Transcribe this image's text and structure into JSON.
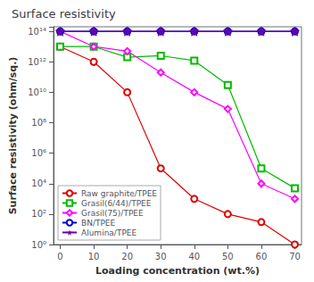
{
  "chart_data": {
    "type": "line",
    "title": "Surface resistivity",
    "xlabel": "Loading concentration (wt.%)",
    "ylabel": "Surface resistivity (ohm/sq.)",
    "x": [
      0,
      10,
      20,
      30,
      40,
      50,
      60,
      70
    ],
    "series": [
      {
        "name": "Raw graphite/TPEE",
        "color": "#dd0000",
        "marker": "circle",
        "values": [
          10000000000000.0,
          1000000000000.0,
          10000000000.0,
          100000.0,
          1000.0,
          100.0,
          30.0,
          1.0
        ]
      },
      {
        "name": "Grasil(6/44)/TPEE",
        "color": "#00bb00",
        "marker": "square",
        "values": [
          10000000000000.0,
          10000000000000.0,
          2000000000000.0,
          2500000000000.0,
          1200000000000.0,
          30000000000.0,
          100000.0,
          5000.0
        ]
      },
      {
        "name": "Grasil(75)/TPEE",
        "color": "#ff00ff",
        "marker": "diamond",
        "values": [
          100000000000000.0,
          10000000000000.0,
          5000000000000.0,
          200000000000.0,
          10000000000.0,
          800000000.0,
          10000.0,
          1000.0
        ]
      },
      {
        "name": "BN/TPEE",
        "color": "#0000cc",
        "marker": "circle",
        "values": [
          100000000000000.0,
          100000000000000.0,
          100000000000000.0,
          100000000000000.0,
          100000000000000.0,
          100000000000000.0,
          100000000000000.0,
          100000000000000.0
        ]
      },
      {
        "name": "Alumina/TPEE",
        "color": "#6600aa",
        "marker": "star",
        "values": [
          100000000000000.0,
          100000000000000.0,
          100000000000000.0,
          100000000000000.0,
          100000000000000.0,
          100000000000000.0,
          100000000000000.0,
          100000000000000.0
        ]
      }
    ],
    "xlim": [
      -2,
      72
    ],
    "xticks": [
      0,
      10,
      20,
      30,
      40,
      50,
      60,
      70
    ],
    "ylim": [
      1,
      200000000000000.0
    ],
    "yticks": [
      {
        "value": 1,
        "label": "10⁰"
      },
      {
        "value": 100.0,
        "label": "10²"
      },
      {
        "value": 10000.0,
        "label": "10⁴"
      },
      {
        "value": 1000000.0,
        "label": "10⁶"
      },
      {
        "value": 100000000.0,
        "label": "10⁸"
      },
      {
        "value": 10000000000.0,
        "label": "10¹⁰"
      },
      {
        "value": 1000000000000.0,
        "label": "10¹²"
      },
      {
        "value": 100000000000000.0,
        "label": "10¹⁴"
      }
    ],
    "log": "y",
    "grid": false,
    "legend": "lower left"
  }
}
